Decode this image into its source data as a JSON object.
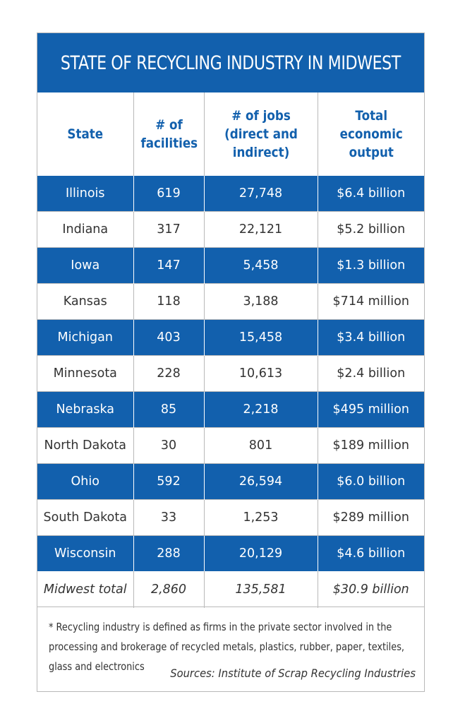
{
  "title": "STATE OF RECYCLING INDUSTRY IN MIDWEST",
  "chart_data": {
    "type": "table",
    "columns": [
      [
        "State"
      ],
      [
        "# of",
        "facilities"
      ],
      [
        "# of jobs",
        "(direct and",
        "indirect)"
      ],
      [
        "Total",
        "economic",
        "output"
      ]
    ],
    "rows": [
      [
        "Illinois",
        "619",
        "27,748",
        "$6.4 billion"
      ],
      [
        "Indiana",
        "317",
        "22,121",
        "$5.2 billion"
      ],
      [
        "Iowa",
        "147",
        "5,458",
        "$1.3 billion"
      ],
      [
        "Kansas",
        "118",
        "3,188",
        "$714 million"
      ],
      [
        "Michigan",
        "403",
        "15,458",
        "$3.4 billion"
      ],
      [
        "Minnesota",
        "228",
        "10,613",
        "$2.4 billion"
      ],
      [
        "Nebraska",
        "85",
        "2,218",
        "$495 million"
      ],
      [
        "North Dakota",
        "30",
        "801",
        "$189 million"
      ],
      [
        "Ohio",
        "592",
        "26,594",
        "$6.0 billion"
      ],
      [
        "South Dakota",
        "33",
        "1,253",
        "$289 million"
      ],
      [
        "Wisconsin",
        "288",
        "20,129",
        "$4.6 billion"
      ]
    ],
    "total": [
      "Midwest total",
      "2,860",
      "135,581",
      "$30.9 billion"
    ]
  },
  "footnote": "* Recycling industry is defined as firms in the private sector involved in the processing and brokerage of recycled metals, plastics, rubber, paper, textiles, glass and electronics",
  "source": "Sources: Institute of Scrap Recycling Industries",
  "colors": {
    "accent": "#1260ad",
    "border": "#b9b9b9",
    "text": "#333333"
  }
}
